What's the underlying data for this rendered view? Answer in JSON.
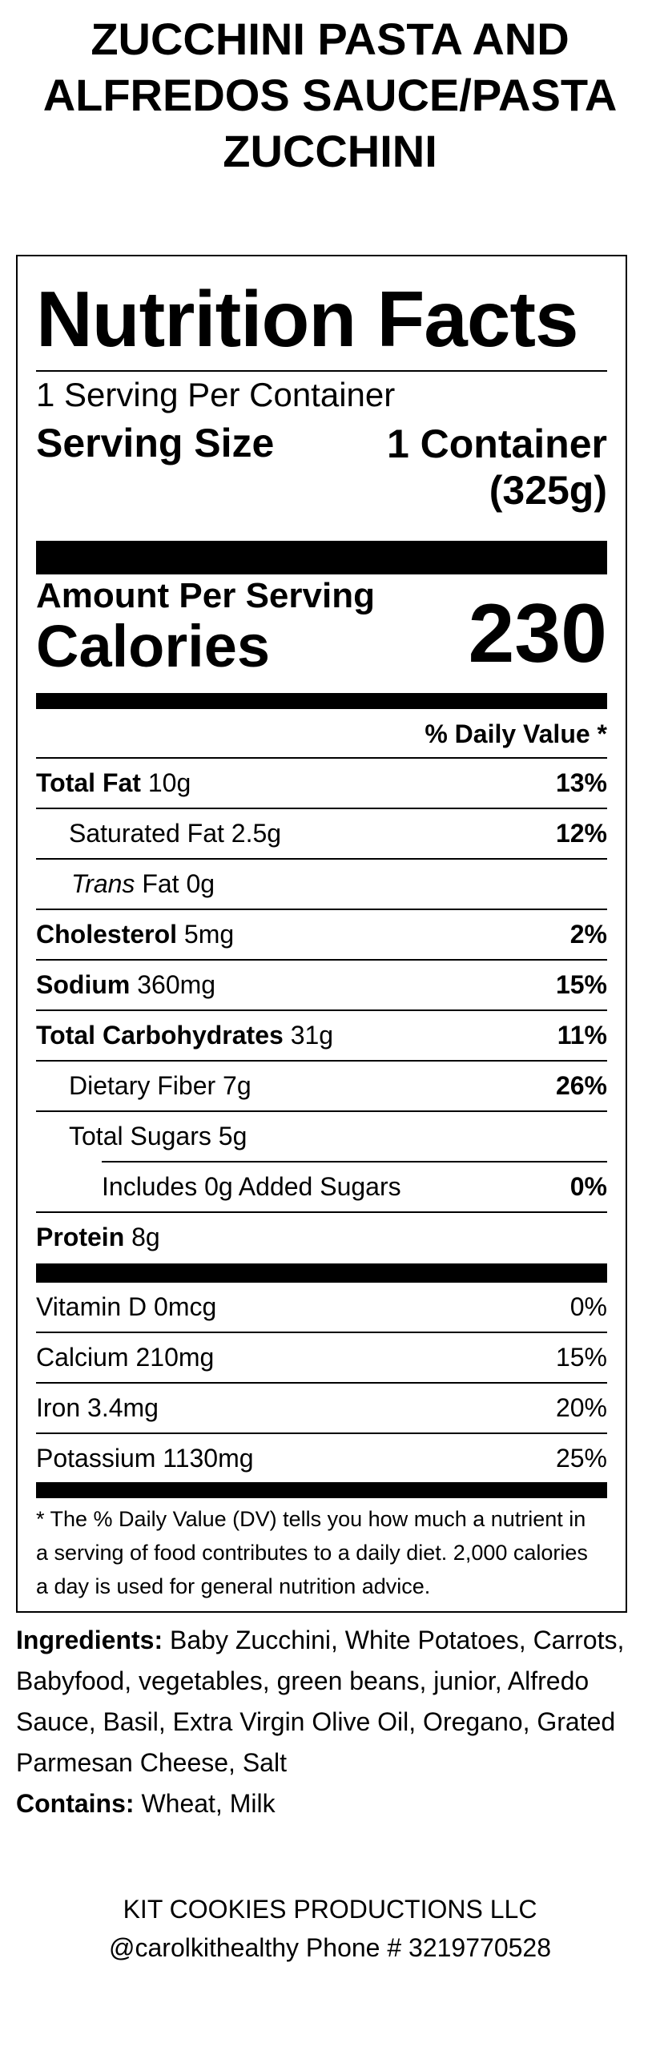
{
  "product_title": [
    "ZUCCHINI PASTA AND",
    "ALFREDOS SAUCE/PASTA",
    "ZUCCHINI"
  ],
  "label": {
    "heading": "Nutrition Facts",
    "servings_per_container": "1 Serving Per Container",
    "serving_size_label": "Serving Size",
    "serving_size_value_line1": "1 Container",
    "serving_size_value_line2": "(325g)",
    "amount_per_serving": "Amount Per Serving",
    "calories_label": "Calories",
    "calories_value": "230",
    "daily_value_header": "% Daily Value *",
    "nutrients": [
      {
        "name": "Total Fat",
        "amount": "10g",
        "dv": "13%"
      },
      {
        "name": "Saturated Fat",
        "amount": "2.5g",
        "dv": "12%"
      },
      {
        "name": "Trans",
        "name_suffix": "Fat",
        "amount": "0g",
        "dv": ""
      },
      {
        "name": "Cholesterol",
        "amount": "5mg",
        "dv": "2%"
      },
      {
        "name": "Sodium",
        "amount": "360mg",
        "dv": "15%"
      },
      {
        "name": "Total Carbohydrates",
        "amount": "31g",
        "dv": "11%"
      },
      {
        "name": "Dietary Fiber",
        "amount": "7g",
        "dv": "26%"
      },
      {
        "name": "Total Sugars",
        "amount": "5g",
        "dv": ""
      },
      {
        "name": "Includes 0g Added Sugars",
        "amount": "",
        "dv": "0%"
      },
      {
        "name": "Protein",
        "amount": "8g",
        "dv": ""
      }
    ],
    "vitamins": [
      {
        "text": "Vitamin D 0mcg",
        "dv": "0%"
      },
      {
        "text": "Calcium 210mg",
        "dv": "15%"
      },
      {
        "text": "Iron 3.4mg",
        "dv": "20%"
      },
      {
        "text": "Potassium 1130mg",
        "dv": "25%"
      }
    ],
    "footnote": "* The % Daily Value (DV) tells you how much a nutrient in a serving of food contributes to a daily diet. 2,000 calories a day is used for general nutrition advice."
  },
  "ingredients": {
    "label": "Ingredients:",
    "text": "Baby Zucchini, White Potatoes, Carrots, Babyfood, vegetables, green beans, junior, Alfredo Sauce, Basil, Extra Virgin Olive Oil, Oregano, Grated Parmesan Cheese, Salt"
  },
  "contains": {
    "label": "Contains:",
    "text": "Wheat, Milk"
  },
  "company": {
    "name": "KIT COOKIES PRODUCTIONS LLC",
    "contact": "@carolkithealthy Phone # 3219770528"
  }
}
